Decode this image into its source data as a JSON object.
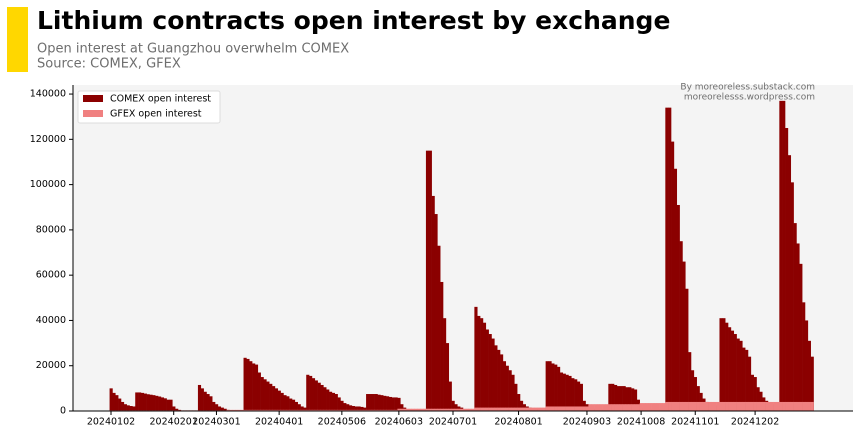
{
  "chart_data": {
    "type": "bar",
    "title": "Lithium contracts open interest by exchange",
    "subtitle": "Open interest at Guangzhou overwhelm COMEX",
    "source": "Source: COMEX, GFEX",
    "annotations": [
      "By moreoreless.substack.com",
      "moreorelesss.wordpress.com"
    ],
    "legend": "upper left",
    "grid": false,
    "ylim": [
      0,
      144000
    ],
    "yticks": [
      0,
      20000,
      40000,
      60000,
      80000,
      100000,
      120000,
      140000
    ],
    "categories": [
      "20240102",
      null,
      null,
      null,
      null,
      null,
      null,
      null,
      null,
      null,
      null,
      null,
      null,
      null,
      null,
      null,
      null,
      null,
      null,
      null,
      null,
      null,
      "20240201",
      null,
      null,
      null,
      null,
      null,
      null,
      null,
      null,
      null,
      null,
      null,
      null,
      null,
      null,
      "20240301",
      null,
      null,
      null,
      null,
      null,
      null,
      null,
      null,
      null,
      null,
      null,
      null,
      null,
      null,
      null,
      null,
      null,
      null,
      null,
      null,
      null,
      "20240401",
      null,
      null,
      null,
      null,
      null,
      null,
      null,
      null,
      null,
      null,
      null,
      null,
      null,
      null,
      null,
      null,
      null,
      null,
      null,
      null,
      null,
      "20240506",
      null,
      null,
      null,
      null,
      null,
      null,
      null,
      null,
      null,
      null,
      null,
      null,
      null,
      null,
      null,
      null,
      null,
      null,
      null,
      "20240603",
      null,
      null,
      null,
      null,
      null,
      null,
      null,
      null,
      null,
      null,
      null,
      null,
      null,
      null,
      null,
      null,
      null,
      null,
      "20240701",
      null,
      null,
      null,
      null,
      null,
      null,
      null,
      null,
      null,
      null,
      null,
      null,
      null,
      null,
      null,
      null,
      null,
      null,
      null,
      null,
      null,
      null,
      "20240801",
      null,
      null,
      null,
      null,
      null,
      null,
      null,
      null,
      null,
      null,
      null,
      null,
      null,
      null,
      null,
      null,
      null,
      null,
      null,
      null,
      null,
      null,
      null,
      "20240903",
      null,
      null,
      null,
      null,
      null,
      null,
      null,
      null,
      null,
      null,
      null,
      null,
      null,
      null,
      null,
      null,
      null,
      null,
      "20241008",
      null,
      null,
      null,
      null,
      null,
      null,
      null,
      null,
      null,
      null,
      null,
      null,
      null,
      null,
      null,
      null,
      null,
      null,
      "20241101",
      null,
      null,
      null,
      null,
      null,
      null,
      null,
      null,
      null,
      null,
      null,
      null,
      null,
      null,
      null,
      null,
      null,
      null,
      null,
      null,
      "20241202",
      null,
      null,
      null,
      null,
      null,
      null,
      null,
      null,
      null,
      null,
      null,
      null,
      null,
      null,
      null,
      null,
      null,
      null,
      null,
      null
    ],
    "series": [
      {
        "name": "COMEX open interest",
        "color": "#8b0000",
        "values": [
          10000,
          8000,
          7000,
          5500,
          4000,
          3000,
          2500,
          2200,
          2000,
          8200,
          8200,
          8000,
          7700,
          7400,
          7200,
          7000,
          6700,
          6400,
          6000,
          5600,
          5000,
          5000,
          2000,
          1000,
          500,
          200,
          100,
          100,
          100,
          100,
          100,
          11500,
          10000,
          8500,
          7500,
          6500,
          4000,
          3000,
          2000,
          1500,
          1000,
          500,
          300,
          200,
          200,
          100,
          100,
          23500,
          23000,
          22000,
          21000,
          20500,
          17000,
          15000,
          14000,
          13000,
          12000,
          11000,
          10000,
          9000,
          8000,
          7000,
          6500,
          5500,
          5000,
          4000,
          3000,
          2000,
          1500,
          16000,
          15500,
          14500,
          13500,
          12500,
          11500,
          10500,
          9500,
          8500,
          8000,
          7500,
          6000,
          4500,
          3500,
          3000,
          2500,
          2200,
          2000,
          2000,
          1800,
          1500,
          7500,
          7500,
          7500,
          7500,
          7200,
          7000,
          6700,
          6500,
          6200,
          6000,
          6000,
          5800,
          3000,
          1500,
          800,
          500,
          300,
          300,
          200,
          200,
          200,
          115000,
          115000,
          95000,
          87000,
          73000,
          57000,
          41000,
          30000,
          13000,
          4500,
          3000,
          2000,
          1500,
          800,
          600,
          500,
          400,
          46000,
          42000,
          41000,
          39000,
          36000,
          34000,
          32000,
          29000,
          27000,
          25000,
          22000,
          20000,
          18000,
          16000,
          12000,
          7500,
          4500,
          3000,
          2000,
          1500,
          1200,
          1000,
          800,
          700,
          600,
          22000,
          22000,
          21000,
          20500,
          19500,
          17000,
          16500,
          16000,
          15500,
          14500,
          14000,
          13000,
          12000,
          4500,
          3000,
          1500,
          1000,
          800,
          700,
          600,
          600,
          600,
          12000,
          12000,
          11500,
          11000,
          11000,
          11000,
          10500,
          10500,
          10000,
          9500,
          5000,
          1500,
          1000,
          800,
          700,
          600,
          600,
          600,
          600,
          600,
          134000,
          134000,
          119000,
          107000,
          91000,
          75000,
          66000,
          54000,
          26000,
          18000,
          15000,
          11000,
          8000,
          5500,
          4000,
          3500,
          3000,
          2500,
          2000,
          41000,
          41000,
          39000,
          37000,
          35500,
          34000,
          32000,
          31000,
          28000,
          27000,
          24000,
          16000,
          15000,
          10500,
          8500,
          6000,
          4500,
          3500,
          3000,
          2500,
          2000,
          137000,
          137000,
          125000,
          113000,
          101000,
          83000,
          74000,
          65000,
          48000,
          40000,
          31000,
          24000
        ]
      },
      {
        "name": "GFEX open interest",
        "color": "#f08080",
        "values": [
          300,
          300,
          300,
          300,
          300,
          300,
          300,
          300,
          300,
          300,
          300,
          300,
          300,
          300,
          300,
          300,
          300,
          300,
          300,
          300,
          300,
          300,
          300,
          300,
          300,
          300,
          300,
          300,
          300,
          300,
          300,
          300,
          300,
          300,
          300,
          300,
          300,
          300,
          300,
          300,
          300,
          500,
          500,
          500,
          500,
          500,
          500,
          500,
          500,
          500,
          500,
          500,
          500,
          500,
          500,
          500,
          500,
          500,
          500,
          500,
          500,
          500,
          500,
          500,
          500,
          500,
          500,
          500,
          500,
          500,
          500,
          500,
          500,
          500,
          500,
          500,
          500,
          500,
          500,
          500,
          500,
          500,
          500,
          500,
          500,
          500,
          500,
          500,
          500,
          500,
          500,
          500,
          500,
          500,
          500,
          500,
          500,
          500,
          500,
          500,
          500,
          1000,
          1000,
          1000,
          1000,
          1000,
          1000,
          1000,
          1000,
          1000,
          1000,
          1000,
          1000,
          1000,
          1000,
          1000,
          1000,
          1000,
          1000,
          1000,
          1000,
          1000,
          1000,
          1000,
          1000,
          1000,
          1000,
          1000,
          1500,
          1500,
          1500,
          1500,
          1500,
          1500,
          1500,
          1500,
          1500,
          1500,
          1500,
          1500,
          1500,
          1500,
          1500,
          1500,
          1500,
          1500,
          1500,
          1500,
          1500,
          1500,
          1500,
          1500,
          1500,
          2000,
          2000,
          2000,
          2000,
          2000,
          2000,
          2000,
          2000,
          2000,
          2000,
          2000,
          2000,
          2000,
          2000,
          2000,
          3000,
          3000,
          3000,
          3000,
          3000,
          3000,
          3000,
          3000,
          3000,
          3000,
          3000,
          3000,
          3000,
          3000,
          3000,
          3000,
          3000,
          3000,
          3500,
          3500,
          3500,
          3500,
          3500,
          3500,
          3500,
          3500,
          3500,
          4000,
          4000,
          4000,
          4000,
          4000,
          4000,
          4000,
          4000,
          4000,
          4000,
          4000,
          4000,
          4000,
          4000,
          4000,
          4000,
          4000,
          4000,
          4000,
          4000,
          4000,
          4000,
          4000,
          4000,
          4000,
          4000,
          4000,
          4000,
          4000,
          4000,
          4000,
          4000,
          4000,
          4000,
          4000,
          4000,
          4000,
          4000,
          4000,
          4000,
          4000,
          4000,
          4000,
          4000,
          4000,
          4000,
          4000,
          4000,
          4000,
          4000,
          4000,
          4000
        ]
      }
    ]
  }
}
